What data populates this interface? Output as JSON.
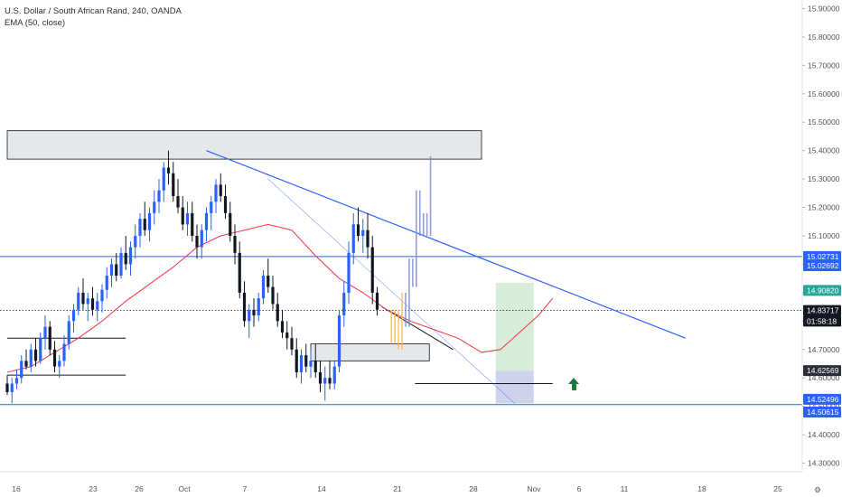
{
  "header": {
    "symbol_line": "U.S. Dollar / South African Rand, 240, OANDA",
    "indicator_line": "EMA (50, close)"
  },
  "colors": {
    "up": "#2962ff",
    "down": "#131722",
    "ema": "#f23645",
    "trendline": "#2962ff",
    "level_line": "#2962ff",
    "zone_fill": "#e6e7ea",
    "price_tag_green": "#26a69a",
    "arrow": "#1b7a3e"
  },
  "chart_data": {
    "type": "candlestick",
    "ylim": [
      14.27,
      15.93
    ],
    "y_ticks": [
      "15.90000",
      "15.80000",
      "15.70000",
      "15.60000",
      "15.50000",
      "15.40000",
      "15.30000",
      "15.20000",
      "15.10000",
      "15.00000",
      "14.90000",
      "14.80000",
      "14.70000",
      "14.60000",
      "14.50000",
      "14.40000",
      "14.30000"
    ],
    "x_ticks": [
      "16",
      "23",
      "26",
      "Oct",
      "7",
      "14",
      "21",
      "28",
      "Nov",
      "6",
      "11",
      "18",
      "25"
    ],
    "price_tags": [
      {
        "label": "15.02731",
        "value": 15.02731,
        "bg": "#2962ff",
        "text": "#ffffff"
      },
      {
        "label": "15.02692",
        "value": 14.995,
        "bg": "#2962ff",
        "text": "#ffffff"
      },
      {
        "label": "14.90820",
        "value": 14.9082,
        "bg": "#26a69a",
        "text": "#ffffff"
      },
      {
        "label": "14.83717",
        "value": 14.83717,
        "bg": "#131722",
        "text": "#ffffff"
      },
      {
        "label": "01:58:18",
        "value": 14.8,
        "bg": "#131722",
        "text": "#ffffff"
      },
      {
        "label": "14.62569",
        "value": 14.62569,
        "bg": "#2a2e39",
        "text": "#ffffff"
      },
      {
        "label": "14.52496",
        "value": 14.52496,
        "bg": "#2962ff",
        "text": "#ffffff"
      },
      {
        "label": "14.50615",
        "value": 14.48,
        "bg": "#2962ff",
        "text": "#ffffff"
      }
    ],
    "levels": [
      15.02731,
      14.50615
    ],
    "current_price": 14.83717,
    "zones": [
      {
        "x0": 0,
        "x1": 100,
        "y0": 15.37,
        "y1": 15.47
      },
      {
        "x0": 64,
        "x1": 89,
        "y0": 14.66,
        "y1": 14.72
      }
    ],
    "trendlines": [
      {
        "x0": 42,
        "y0": 15.4,
        "x1": 143,
        "y1": 14.74,
        "color": "#2962ff",
        "width": 1.2
      },
      {
        "x0": 55,
        "y0": 15.3,
        "x1": 107,
        "y1": 14.51,
        "color": "#2962ff",
        "width": 0.6,
        "opacity": 0.6
      },
      {
        "x0": 79,
        "y0": 14.85,
        "x1": 94,
        "y1": 14.7,
        "color": "#131722",
        "width": 1
      }
    ],
    "segments": [
      {
        "x0": 0,
        "x1": 25,
        "y": 14.74,
        "color": "#131722"
      },
      {
        "x0": 0,
        "x1": 25,
        "y": 14.61,
        "color": "#131722"
      },
      {
        "x0": 86,
        "x1": 115,
        "y": 14.58,
        "color": "#131722"
      }
    ],
    "position": {
      "x0": 103,
      "x1": 111,
      "entry": 14.625,
      "target": 14.935,
      "stop": 14.51,
      "profit_fill": "#c8e6c9",
      "loss_fill": "#c5cae9"
    },
    "ema": [
      [
        0,
        14.62
      ],
      [
        5,
        14.64
      ],
      [
        10,
        14.69
      ],
      [
        15,
        14.74
      ],
      [
        20,
        14.8
      ],
      [
        25,
        14.87
      ],
      [
        30,
        14.93
      ],
      [
        35,
        14.99
      ],
      [
        40,
        15.06
      ],
      [
        45,
        15.1
      ],
      [
        50,
        15.12
      ],
      [
        55,
        15.14
      ],
      [
        60,
        15.12
      ],
      [
        65,
        15.03
      ],
      [
        70,
        14.95
      ],
      [
        75,
        14.9
      ],
      [
        80,
        14.84
      ],
      [
        85,
        14.8
      ],
      [
        90,
        14.77
      ],
      [
        95,
        14.74
      ],
      [
        100,
        14.69
      ],
      [
        104,
        14.7
      ],
      [
        108,
        14.76
      ],
      [
        112,
        14.82
      ],
      [
        115,
        14.88
      ]
    ],
    "candles": [
      [
        14.58,
        14.61,
        14.54,
        14.55
      ],
      [
        14.55,
        14.6,
        14.51,
        14.58
      ],
      [
        14.58,
        14.63,
        14.56,
        14.6
      ],
      [
        14.6,
        14.68,
        14.58,
        14.66
      ],
      [
        14.66,
        14.7,
        14.63,
        14.64
      ],
      [
        14.64,
        14.72,
        14.62,
        14.7
      ],
      [
        14.7,
        14.74,
        14.64,
        14.66
      ],
      [
        14.66,
        14.76,
        14.65,
        14.74
      ],
      [
        14.74,
        14.82,
        14.7,
        14.78
      ],
      [
        14.78,
        14.8,
        14.68,
        14.7
      ],
      [
        14.7,
        14.73,
        14.62,
        14.64
      ],
      [
        14.64,
        14.68,
        14.6,
        14.66
      ],
      [
        14.66,
        14.75,
        14.64,
        14.72
      ],
      [
        14.72,
        14.82,
        14.7,
        14.8
      ],
      [
        14.8,
        14.86,
        14.76,
        14.84
      ],
      [
        14.84,
        14.92,
        14.82,
        14.9
      ],
      [
        14.9,
        14.95,
        14.84,
        14.86
      ],
      [
        14.86,
        14.9,
        14.8,
        14.88
      ],
      [
        14.88,
        14.92,
        14.82,
        14.84
      ],
      [
        14.84,
        14.9,
        14.8,
        14.87
      ],
      [
        14.87,
        14.93,
        14.83,
        14.91
      ],
      [
        14.91,
        14.99,
        14.88,
        14.96
      ],
      [
        14.96,
        15.02,
        14.92,
        15.0
      ],
      [
        15.0,
        15.04,
        14.94,
        14.96
      ],
      [
        14.96,
        15.06,
        14.95,
        15.04
      ],
      [
        15.04,
        15.1,
        14.98,
        15.0
      ],
      [
        15.0,
        15.08,
        14.96,
        15.06
      ],
      [
        15.06,
        15.14,
        15.02,
        15.1
      ],
      [
        15.1,
        15.18,
        15.06,
        15.16
      ],
      [
        15.16,
        15.22,
        15.1,
        15.12
      ],
      [
        15.12,
        15.2,
        15.08,
        15.18
      ],
      [
        15.18,
        15.26,
        15.14,
        15.22
      ],
      [
        15.22,
        15.3,
        15.18,
        15.26
      ],
      [
        15.26,
        15.36,
        15.22,
        15.34
      ],
      [
        15.34,
        15.4,
        15.28,
        15.32
      ],
      [
        15.32,
        15.36,
        15.22,
        15.24
      ],
      [
        15.24,
        15.3,
        15.18,
        15.2
      ],
      [
        15.2,
        15.24,
        15.12,
        15.14
      ],
      [
        15.14,
        15.22,
        15.1,
        15.18
      ],
      [
        15.18,
        15.22,
        15.08,
        15.1
      ],
      [
        15.1,
        15.14,
        15.02,
        15.06
      ],
      [
        15.06,
        15.14,
        15.02,
        15.12
      ],
      [
        15.12,
        15.2,
        15.08,
        15.18
      ],
      [
        15.18,
        15.24,
        15.12,
        15.22
      ],
      [
        15.22,
        15.3,
        15.18,
        15.28
      ],
      [
        15.28,
        15.32,
        15.22,
        15.24
      ],
      [
        15.24,
        15.28,
        15.16,
        15.18
      ],
      [
        15.18,
        15.22,
        15.08,
        15.1
      ],
      [
        15.1,
        15.14,
        15.0,
        15.04
      ],
      [
        15.04,
        15.08,
        14.88,
        14.9
      ],
      [
        14.9,
        14.94,
        14.78,
        14.8
      ],
      [
        14.8,
        14.86,
        14.74,
        14.84
      ],
      [
        14.84,
        14.88,
        14.78,
        14.82
      ],
      [
        14.82,
        14.9,
        14.8,
        14.88
      ],
      [
        14.88,
        14.98,
        14.86,
        14.96
      ],
      [
        14.96,
        15.02,
        14.9,
        14.92
      ],
      [
        14.92,
        14.96,
        14.84,
        14.86
      ],
      [
        14.86,
        14.9,
        14.78,
        14.8
      ],
      [
        14.8,
        14.84,
        14.74,
        14.76
      ],
      [
        14.76,
        14.8,
        14.7,
        14.74
      ],
      [
        14.74,
        14.78,
        14.68,
        14.7
      ],
      [
        14.7,
        14.74,
        14.6,
        14.62
      ],
      [
        14.62,
        14.7,
        14.58,
        14.68
      ],
      [
        14.68,
        14.72,
        14.62,
        14.64
      ],
      [
        14.64,
        14.7,
        14.6,
        14.66
      ],
      [
        14.66,
        14.72,
        14.6,
        14.62
      ],
      [
        14.62,
        14.66,
        14.55,
        14.58
      ],
      [
        14.58,
        14.64,
        14.52,
        14.6
      ],
      [
        14.6,
        14.66,
        14.56,
        14.58
      ],
      [
        14.58,
        14.66,
        14.56,
        14.64
      ],
      [
        14.64,
        14.84,
        14.62,
        14.82
      ],
      [
        14.82,
        14.94,
        14.78,
        14.9
      ],
      [
        14.9,
        15.08,
        14.86,
        15.04
      ],
      [
        15.04,
        15.18,
        15.0,
        15.14
      ],
      [
        15.14,
        15.2,
        15.08,
        15.1
      ],
      [
        15.1,
        15.16,
        15.04,
        15.12
      ],
      [
        15.12,
        15.18,
        15.02,
        15.06
      ],
      [
        15.06,
        15.1,
        14.86,
        14.9
      ],
      [
        14.9,
        14.92,
        14.82,
        14.84
      ]
    ],
    "projection": [
      [
        14.84,
        14.72
      ],
      [
        14.72,
        14.84
      ],
      [
        14.84,
        14.7
      ],
      [
        14.7,
        14.9
      ],
      [
        14.9,
        14.78
      ],
      [
        14.78,
        15.02
      ],
      [
        15.02,
        14.92
      ],
      [
        14.92,
        15.26
      ],
      [
        15.26,
        15.1
      ],
      [
        15.1,
        15.18
      ],
      [
        15.18,
        15.1
      ],
      [
        15.1,
        15.38
      ]
    ]
  }
}
